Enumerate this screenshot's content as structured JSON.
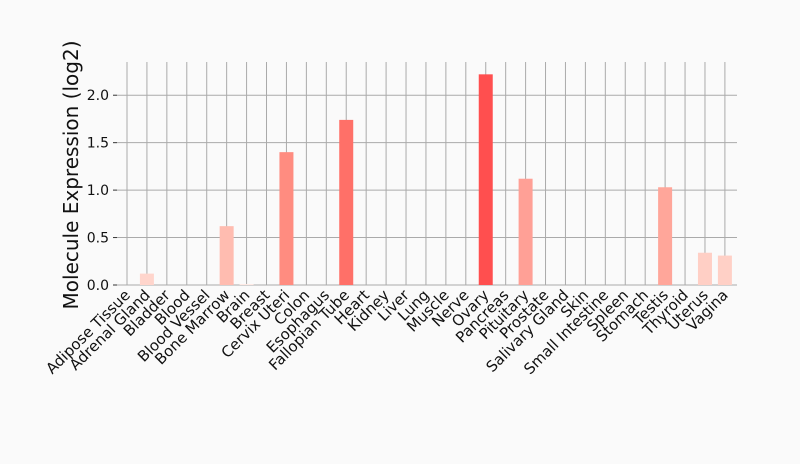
{
  "chart_data": {
    "type": "bar",
    "ylabel": "Molecule Expression (log2)",
    "categories": [
      "Adipose Tissue",
      "Adrenal Gland",
      "Bladder",
      "Blood",
      "Blood Vessel",
      "Bone Marrow",
      "Brain",
      "Breast",
      "Cervix Uteri",
      "Colon",
      "Esophagus",
      "Fallopian Tube",
      "Heart",
      "Kidney",
      "Liver",
      "Lung",
      "Muscle",
      "Nerve",
      "Ovary",
      "Pancreas",
      "Pituitary",
      "Prostate",
      "Salivary Gland",
      "Skin",
      "Small Intestine",
      "Spleen",
      "Stomach",
      "Testis",
      "Thyroid",
      "Uterus",
      "Vagina"
    ],
    "values": [
      0,
      0.12,
      0,
      0,
      0,
      0.62,
      0.01,
      0,
      1.4,
      0,
      0,
      1.74,
      0,
      0,
      0,
      0,
      0,
      0,
      2.22,
      0,
      1.12,
      0,
      0,
      0,
      0,
      0,
      0,
      1.03,
      0,
      0.34,
      0.31
    ],
    "colors": [
      "#ffd8d0",
      "#ffd5cc",
      "#ffd8d0",
      "#ffd8d0",
      "#ffd8d0",
      "#ffbcb0",
      "#ffe9e4",
      "#ffd8d0",
      "#ff8c80",
      "#ffd8d0",
      "#ffd8d0",
      "#ff7068",
      "#ffd8d0",
      "#ffd8d0",
      "#ffd8d0",
      "#ffd8d0",
      "#ffd8d0",
      "#ffd8d0",
      "#ff4f4f",
      "#ffd8d0",
      "#ffa096",
      "#ffd8d0",
      "#ffd8d0",
      "#ffd8d0",
      "#ffd8d0",
      "#ffd8d0",
      "#ffd8d0",
      "#ffa69a",
      "#ffd8d0",
      "#ffcfc5",
      "#ffd0c6"
    ],
    "ylim": [
      0,
      2.35
    ],
    "yticks": [
      {
        "value": 0,
        "label": "0.0"
      },
      0.5,
      {
        "value": 1,
        "label": "1.0"
      },
      1.5,
      {
        "value": 2,
        "label": "2.0"
      }
    ],
    "grid": true
  }
}
